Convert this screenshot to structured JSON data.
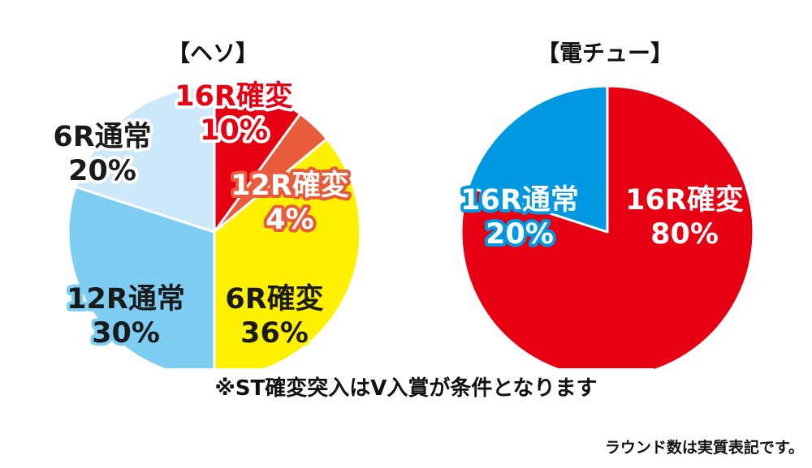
{
  "chart_data": [
    {
      "type": "pie",
      "title": "【ヘソ】",
      "unit": "%",
      "slices": [
        {
          "name": "16R確変",
          "value": 10,
          "value_label": "10%",
          "color": "#e60012",
          "text_fill": "#e60012",
          "text_stroke": "#ffffff"
        },
        {
          "name": "12R確変",
          "value": 4,
          "value_label": "4%",
          "color": "#e85c3c",
          "text_fill": "#ffffff",
          "text_stroke": "#e85c3c"
        },
        {
          "name": "6R確変",
          "value": 36,
          "value_label": "36%",
          "color": "#fff100",
          "text_fill": "#1a1a1a",
          "text_stroke": "#fff100"
        },
        {
          "name": "12R通常",
          "value": 30,
          "value_label": "30%",
          "color": "#7ecef4",
          "text_fill": "#1a1a1a",
          "text_stroke": "#7ecef4"
        },
        {
          "name": "6R通常",
          "value": 20,
          "value_label": "20%",
          "color": "#cce8f9",
          "text_fill": "#1a1a1a",
          "text_stroke": "#ffffff"
        }
      ]
    },
    {
      "type": "pie",
      "title": "【電チュー】",
      "unit": "%",
      "slices": [
        {
          "name": "16R確変",
          "value": 80,
          "value_label": "80%",
          "color": "#e60012",
          "text_fill": "#ffffff",
          "text_stroke": "#e60012"
        },
        {
          "name": "16R通常",
          "value": 20,
          "value_label": "20%",
          "color": "#0098e0",
          "text_fill": "#ffffff",
          "text_stroke": "#0098e0"
        }
      ]
    }
  ],
  "note": "※ST確変突入はV入賞が条件となります",
  "footnote": "ラウンド数は実質表記です。"
}
